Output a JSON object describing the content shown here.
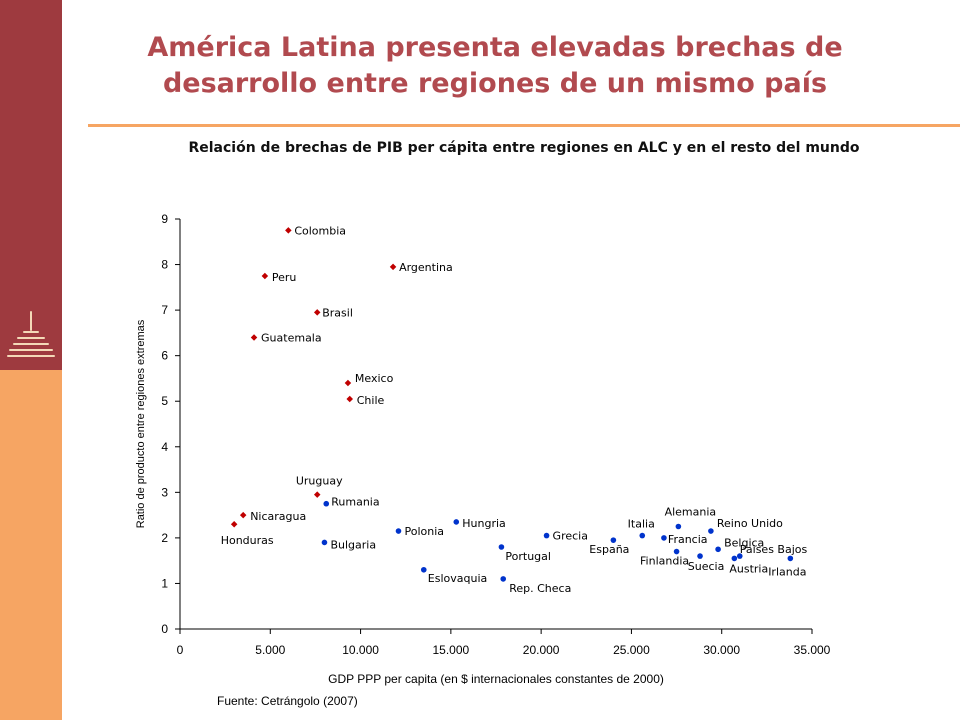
{
  "slide": {
    "title_line1": "América Latina presenta elevadas brechas de",
    "title_line2": "desarrollo entre regiones de un mismo país",
    "subtitle": "Relación de brechas de PIB per cápita entre regiones en ALC y en el resto del mundo",
    "source": "Fuente: Cetrángolo (2007)"
  },
  "colors": {
    "left_bar_top": "#9e3a3f",
    "left_bar_bottom": "#f6a563",
    "title": "#b14a4f",
    "latam_series": "#c00000",
    "other_series": "#0033cc"
  },
  "chart_data": {
    "type": "scatter",
    "xlabel": "GDP PPP per capita (en $ internacionales constantes de 2000)",
    "ylabel": "Ratio de producto entre regiones extremas",
    "xlim": [
      0,
      35000
    ],
    "ylim": [
      0,
      9
    ],
    "x_ticks": [
      "0",
      "5.000",
      "10.000",
      "15.000",
      "20.000",
      "25.000",
      "30.000",
      "35.000"
    ],
    "y_ticks": [
      "0",
      "1",
      "2",
      "3",
      "4",
      "5",
      "6",
      "7",
      "8",
      "9"
    ],
    "grid": false,
    "series": [
      {
        "color": "#c00000",
        "points": [
          {
            "label": "Colombia",
            "x": 6000,
            "y": 8.75
          },
          {
            "label": "Argentina",
            "x": 11800,
            "y": 7.95
          },
          {
            "label": "Peru",
            "x": 4700,
            "y": 7.75
          },
          {
            "label": "Brasil",
            "x": 7600,
            "y": 6.95
          },
          {
            "label": "Guatemala",
            "x": 4100,
            "y": 6.4
          },
          {
            "label": "Mexico",
            "x": 9300,
            "y": 5.4
          },
          {
            "label": "Chile",
            "x": 9400,
            "y": 5.05
          },
          {
            "label": "Uruguay",
            "x": 7600,
            "y": 2.95
          },
          {
            "label": "Nicaragua",
            "x": 3500,
            "y": 2.5
          },
          {
            "label": "Honduras",
            "x": 3000,
            "y": 2.3
          }
        ]
      },
      {
        "color": "#0033cc",
        "points": [
          {
            "label": "Rumania",
            "x": 8100,
            "y": 2.75
          },
          {
            "label": "Bulgaria",
            "x": 8000,
            "y": 1.9
          },
          {
            "label": "Polonia",
            "x": 12100,
            "y": 2.15
          },
          {
            "label": "Hungria",
            "x": 15300,
            "y": 2.35
          },
          {
            "label": "Eslovaquia",
            "x": 13500,
            "y": 1.3
          },
          {
            "label": "Portugal",
            "x": 17800,
            "y": 1.8
          },
          {
            "label": "Rep. Checa",
            "x": 17900,
            "y": 1.1
          },
          {
            "label": "Grecia",
            "x": 20300,
            "y": 2.05
          },
          {
            "label": "España",
            "x": 24000,
            "y": 1.95
          },
          {
            "label": "Italia",
            "x": 25600,
            "y": 2.05
          },
          {
            "label": "Francia",
            "x": 26800,
            "y": 2.0
          },
          {
            "label": "Alemania",
            "x": 27600,
            "y": 2.25
          },
          {
            "label": "Finlandia",
            "x": 27500,
            "y": 1.7
          },
          {
            "label": "Reino Unido",
            "x": 29400,
            "y": 2.15
          },
          {
            "label": "Belgica",
            "x": 29800,
            "y": 1.75
          },
          {
            "label": "Suecia",
            "x": 28800,
            "y": 1.6
          },
          {
            "label": "Austria",
            "x": 30700,
            "y": 1.55
          },
          {
            "label": "Paises Bajos",
            "x": 31000,
            "y": 1.6
          },
          {
            "label": "Irlanda",
            "x": 33800,
            "y": 1.55
          }
        ]
      }
    ]
  }
}
